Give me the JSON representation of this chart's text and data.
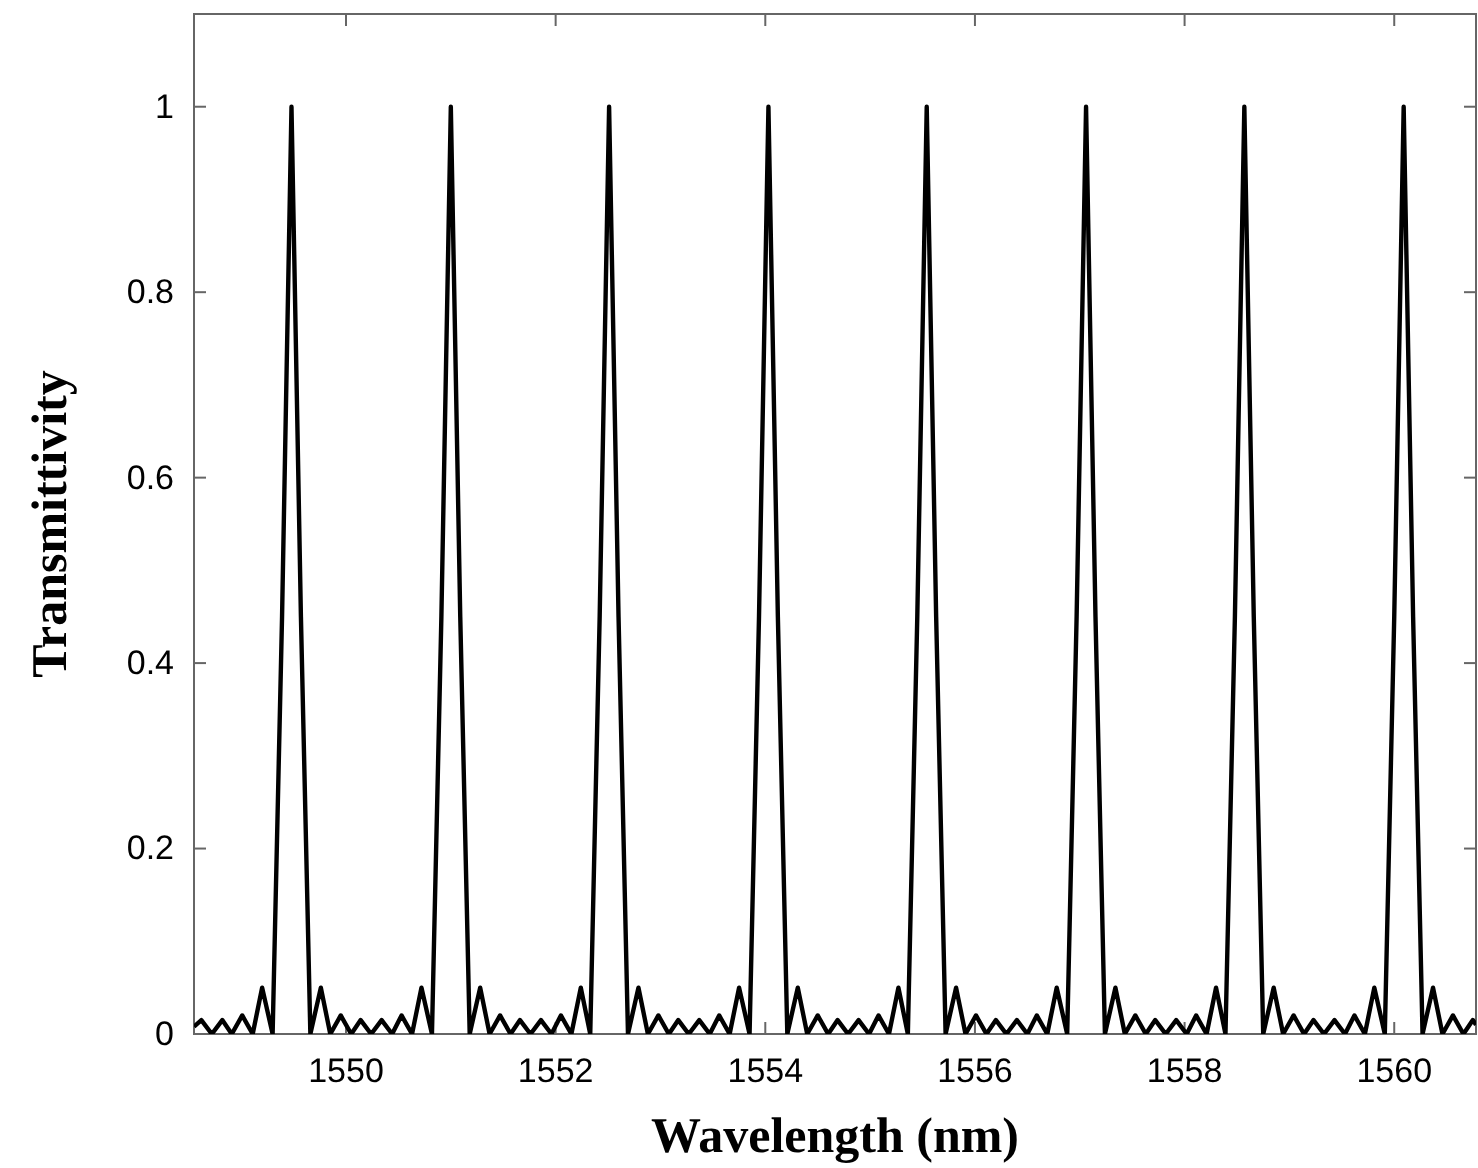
{
  "chart_data": {
    "type": "line",
    "xlabel": "Wavelength (nm)",
    "ylabel": "Transmittivity",
    "xlim": [
      1548.55,
      1560.78
    ],
    "ylim": [
      0,
      1.1
    ],
    "xticks": [
      1550,
      1552,
      1554,
      1556,
      1558,
      1560
    ],
    "yticks": [
      0,
      0.2,
      0.4,
      0.6,
      0.8,
      1
    ],
    "marker": "none",
    "line_style": "solid",
    "series": [
      {
        "color": "#000000",
        "x": [
          1548.55,
          1548.62,
          1548.72,
          1548.82,
          1548.91,
          1549.01,
          1549.11,
          1549.2,
          1549.3,
          1549.39,
          1549.48,
          1549.57,
          1549.66,
          1549.76,
          1549.85,
          1549.95,
          1550.05,
          1550.14,
          1550.24,
          1550.34,
          1550.44,
          1550.53,
          1550.63,
          1550.72,
          1550.82,
          1550.91,
          1551.0,
          1551.09,
          1551.18,
          1551.28,
          1551.37,
          1551.47,
          1551.57,
          1551.66,
          1551.76,
          1551.86,
          1551.96,
          1552.05,
          1552.15,
          1552.24,
          1552.33,
          1552.42,
          1552.51,
          1552.6,
          1552.69,
          1552.79,
          1552.88,
          1552.98,
          1553.08,
          1553.17,
          1553.27,
          1553.37,
          1553.47,
          1553.56,
          1553.66,
          1553.75,
          1553.85,
          1553.94,
          1554.03,
          1554.12,
          1554.21,
          1554.31,
          1554.4,
          1554.5,
          1554.6,
          1554.69,
          1554.79,
          1554.89,
          1554.99,
          1555.08,
          1555.18,
          1555.27,
          1555.36,
          1555.45,
          1555.54,
          1555.63,
          1555.72,
          1555.82,
          1555.91,
          1556.01,
          1556.11,
          1556.2,
          1556.3,
          1556.4,
          1556.5,
          1556.59,
          1556.69,
          1556.78,
          1556.88,
          1556.97,
          1557.06,
          1557.15,
          1557.24,
          1557.34,
          1557.43,
          1557.53,
          1557.63,
          1557.72,
          1557.82,
          1557.92,
          1558.02,
          1558.11,
          1558.21,
          1558.3,
          1558.39,
          1558.48,
          1558.57,
          1558.66,
          1558.75,
          1558.85,
          1558.94,
          1559.04,
          1559.14,
          1559.23,
          1559.33,
          1559.43,
          1559.53,
          1559.62,
          1559.72,
          1559.81,
          1559.91,
          1560.0,
          1560.09,
          1560.18,
          1560.27,
          1560.37,
          1560.46,
          1560.56,
          1560.66,
          1560.75,
          1560.78
        ],
        "values": [
          0.008,
          0.015,
          0,
          0.015,
          0,
          0.02,
          0,
          0.05,
          0,
          0.45,
          1,
          0.45,
          0,
          0.05,
          0,
          0.02,
          0,
          0.015,
          0,
          0.015,
          0,
          0.02,
          0,
          0.05,
          0,
          0.45,
          1,
          0.45,
          0,
          0.05,
          0,
          0.02,
          0,
          0.015,
          0,
          0.015,
          0,
          0.02,
          0,
          0.05,
          0,
          0.45,
          1,
          0.45,
          0,
          0.05,
          0,
          0.02,
          0,
          0.015,
          0,
          0.015,
          0,
          0.02,
          0,
          0.05,
          0,
          0.45,
          1,
          0.45,
          0,
          0.05,
          0,
          0.02,
          0,
          0.015,
          0,
          0.015,
          0,
          0.02,
          0,
          0.05,
          0,
          0.45,
          1,
          0.45,
          0,
          0.05,
          0,
          0.02,
          0,
          0.015,
          0,
          0.015,
          0,
          0.02,
          0,
          0.05,
          0,
          0.45,
          1,
          0.45,
          0,
          0.05,
          0,
          0.02,
          0,
          0.015,
          0,
          0.015,
          0,
          0.02,
          0,
          0.05,
          0,
          0.45,
          1,
          0.45,
          0,
          0.05,
          0,
          0.02,
          0,
          0.015,
          0,
          0.015,
          0,
          0.02,
          0,
          0.05,
          0,
          0.45,
          1,
          0.45,
          0,
          0.05,
          0,
          0.02,
          0,
          0.015,
          0.01
        ]
      }
    ]
  }
}
